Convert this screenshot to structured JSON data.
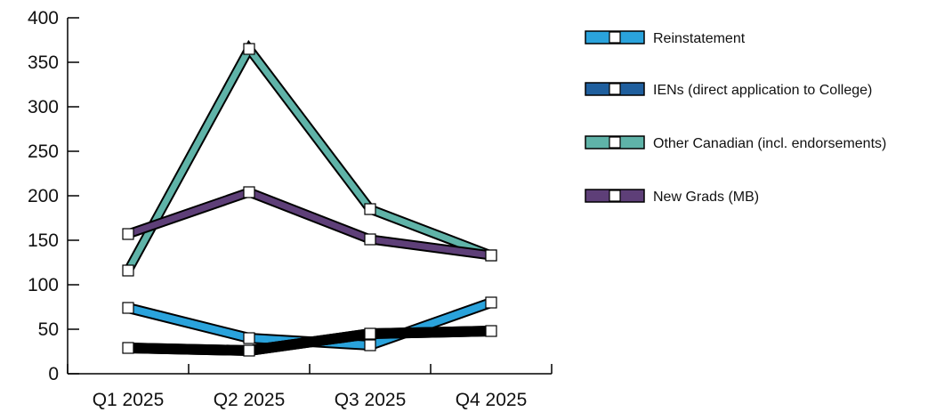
{
  "chart_data": {
    "type": "line",
    "title": "",
    "xlabel": "",
    "ylabel": "",
    "categories": [
      "Q1 2025",
      "Q2 2025",
      "Q3 2025",
      "Q4 2025"
    ],
    "ylim": [
      0,
      400
    ],
    "yticks": [
      0,
      50,
      100,
      150,
      200,
      250,
      300,
      350,
      400
    ],
    "grid": false,
    "legend_position": "right",
    "series": [
      {
        "name": "Reinstatement",
        "values": [
          74,
          40,
          32,
          80
        ],
        "color": "#2aa3dc"
      },
      {
        "name": "IENs (direct application to College)",
        "values": [
          29,
          26,
          45,
          48
        ],
        "color": "#000000"
      },
      {
        "name": "Other Canadian (incl. endorsements)",
        "values": [
          116,
          365,
          185,
          133
        ],
        "color": "#5fb3a8"
      },
      {
        "name": "New Grads (MB)",
        "values": [
          157,
          204,
          151,
          133
        ],
        "color": "#5e3f78"
      }
    ],
    "legend_swatch_colors": [
      "#2aa3dc",
      "#1f5f9e",
      "#5fb3a8",
      "#5e3f78"
    ]
  }
}
